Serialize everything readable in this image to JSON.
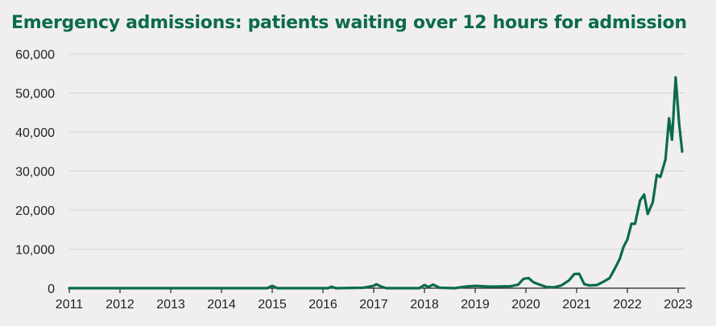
{
  "chart_data": {
    "type": "line",
    "title": "Emergency admissions: patients waiting over 12 hours for admission",
    "xlabel": "",
    "ylabel": "",
    "xlim": [
      2011,
      2023.1
    ],
    "ylim": [
      0,
      60000
    ],
    "x_ticks": [
      "2011",
      "2012",
      "2013",
      "2014",
      "2015",
      "2016",
      "2017",
      "2018",
      "2019",
      "2020",
      "2021",
      "2022",
      "2023"
    ],
    "y_ticks": [
      "0",
      "10,000",
      "20,000",
      "30,000",
      "40,000",
      "50,000",
      "60,000"
    ],
    "grid": true,
    "line_color": "#0b6b4a",
    "series": [
      {
        "points": [
          [
            2011.0,
            0
          ],
          [
            2014.9,
            0
          ],
          [
            2015.0,
            600
          ],
          [
            2015.1,
            0
          ],
          [
            2016.1,
            0
          ],
          [
            2016.17,
            400
          ],
          [
            2016.25,
            0
          ],
          [
            2016.8,
            100
          ],
          [
            2017.0,
            600
          ],
          [
            2017.05,
            1000
          ],
          [
            2017.15,
            400
          ],
          [
            2017.25,
            0
          ],
          [
            2017.9,
            0
          ],
          [
            2018.0,
            800
          ],
          [
            2018.08,
            300
          ],
          [
            2018.17,
            900
          ],
          [
            2018.3,
            100
          ],
          [
            2018.6,
            0
          ],
          [
            2018.8,
            400
          ],
          [
            2019.0,
            600
          ],
          [
            2019.15,
            500
          ],
          [
            2019.3,
            400
          ],
          [
            2019.7,
            500
          ],
          [
            2019.85,
            900
          ],
          [
            2019.95,
            2400
          ],
          [
            2020.05,
            2600
          ],
          [
            2020.15,
            1500
          ],
          [
            2020.25,
            1000
          ],
          [
            2020.4,
            300
          ],
          [
            2020.55,
            200
          ],
          [
            2020.7,
            700
          ],
          [
            2020.85,
            2000
          ],
          [
            2020.95,
            3600
          ],
          [
            2021.05,
            3700
          ],
          [
            2021.15,
            1000
          ],
          [
            2021.25,
            700
          ],
          [
            2021.4,
            800
          ],
          [
            2021.55,
            1800
          ],
          [
            2021.65,
            2600
          ],
          [
            2021.75,
            5000
          ],
          [
            2021.85,
            7500
          ],
          [
            2021.92,
            10500
          ],
          [
            2022.0,
            12500
          ],
          [
            2022.08,
            16500
          ],
          [
            2022.15,
            16500
          ],
          [
            2022.25,
            22500
          ],
          [
            2022.33,
            24000
          ],
          [
            2022.4,
            19000
          ],
          [
            2022.5,
            22000
          ],
          [
            2022.58,
            29000
          ],
          [
            2022.65,
            28500
          ],
          [
            2022.75,
            33000
          ],
          [
            2022.82,
            43500
          ],
          [
            2022.88,
            38000
          ],
          [
            2022.95,
            54000
          ],
          [
            2023.02,
            42000
          ],
          [
            2023.08,
            35000
          ]
        ]
      }
    ]
  }
}
